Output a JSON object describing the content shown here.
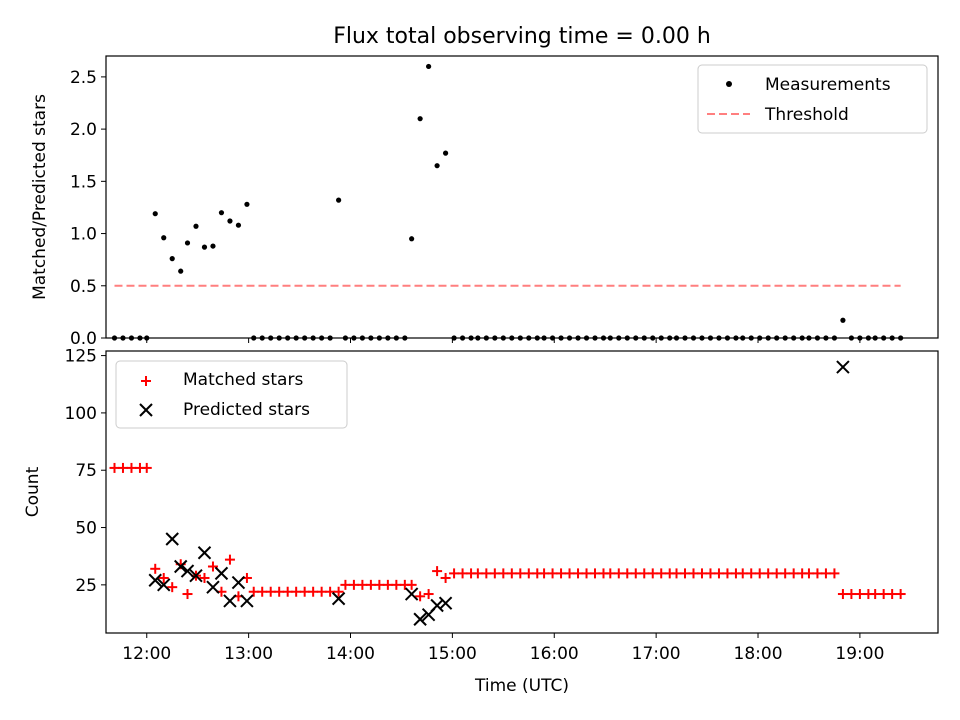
{
  "title": "Flux total observing time = 0.00 h",
  "colors": {
    "measurement": "#000000",
    "threshold": "#ff7f7f",
    "matched": "#ff0000",
    "predicted": "#000000"
  },
  "chart_data": [
    {
      "type": "scatter",
      "ylabel": "Matched/Predicted stars",
      "xlim": [
        "11:36",
        "19:46"
      ],
      "ylim": [
        0,
        2.7
      ],
      "yticks": [
        "0.0",
        "0.5",
        "1.0",
        "1.5",
        "2.0",
        "2.5"
      ],
      "legend": {
        "position": "top-right",
        "entries": [
          "Measurements",
          "Threshold"
        ]
      },
      "threshold": {
        "name": "Threshold",
        "value": 0.5,
        "x": [
          "11:41",
          "19:24"
        ]
      },
      "series": [
        {
          "name": "Measurements",
          "points": [
            [
              "11:41",
              0
            ],
            [
              "11:46",
              0
            ],
            [
              "11:51",
              0
            ],
            [
              "11:56",
              0
            ],
            [
              "12:00",
              0
            ],
            [
              "12:05",
              1.19
            ],
            [
              "12:10",
              0.96
            ],
            [
              "12:15",
              0.76
            ],
            [
              "12:20",
              0.64
            ],
            [
              "12:24",
              0.91
            ],
            [
              "12:29",
              1.07
            ],
            [
              "12:34",
              0.87
            ],
            [
              "12:39",
              0.88
            ],
            [
              "12:44",
              1.2
            ],
            [
              "12:49",
              1.12
            ],
            [
              "12:54",
              1.08
            ],
            [
              "12:59",
              1.28
            ],
            [
              "13:03",
              0
            ],
            [
              "13:08",
              0
            ],
            [
              "13:13",
              0
            ],
            [
              "13:18",
              0
            ],
            [
              "13:23",
              0
            ],
            [
              "13:28",
              0
            ],
            [
              "13:33",
              0
            ],
            [
              "13:38",
              0
            ],
            [
              "13:43",
              0
            ],
            [
              "13:48",
              0
            ],
            [
              "13:53",
              1.32
            ],
            [
              "13:57",
              0
            ],
            [
              "14:02",
              0
            ],
            [
              "14:07",
              0
            ],
            [
              "14:12",
              0
            ],
            [
              "14:17",
              0
            ],
            [
              "14:22",
              0
            ],
            [
              "14:27",
              0
            ],
            [
              "14:32",
              0
            ],
            [
              "14:36",
              0.95
            ],
            [
              "14:41",
              2.1
            ],
            [
              "14:46",
              2.6
            ],
            [
              "14:51",
              1.65
            ],
            [
              "14:56",
              1.77
            ],
            [
              "15:01",
              0
            ],
            [
              "15:06",
              0
            ],
            [
              "15:11",
              0
            ],
            [
              "15:15",
              0
            ],
            [
              "15:20",
              0
            ],
            [
              "15:25",
              0
            ],
            [
              "15:30",
              0
            ],
            [
              "15:35",
              0
            ],
            [
              "15:40",
              0
            ],
            [
              "15:45",
              0
            ],
            [
              "15:50",
              0
            ],
            [
              "15:54",
              0
            ],
            [
              "15:59",
              0
            ],
            [
              "16:04",
              0
            ],
            [
              "16:09",
              0
            ],
            [
              "16:14",
              0
            ],
            [
              "16:19",
              0
            ],
            [
              "16:24",
              0
            ],
            [
              "16:29",
              0
            ],
            [
              "16:33",
              0
            ],
            [
              "16:38",
              0
            ],
            [
              "16:43",
              0
            ],
            [
              "16:48",
              0
            ],
            [
              "16:53",
              0
            ],
            [
              "16:58",
              0
            ],
            [
              "17:03",
              0
            ],
            [
              "17:08",
              0
            ],
            [
              "17:12",
              0
            ],
            [
              "17:17",
              0
            ],
            [
              "17:22",
              0
            ],
            [
              "17:27",
              0
            ],
            [
              "17:32",
              0
            ],
            [
              "17:37",
              0
            ],
            [
              "17:42",
              0
            ],
            [
              "17:47",
              0
            ],
            [
              "17:51",
              0
            ],
            [
              "17:56",
              0
            ],
            [
              "18:01",
              0
            ],
            [
              "18:06",
              0
            ],
            [
              "18:11",
              0
            ],
            [
              "18:16",
              0
            ],
            [
              "18:21",
              0
            ],
            [
              "18:26",
              0
            ],
            [
              "18:30",
              0
            ],
            [
              "18:35",
              0
            ],
            [
              "18:40",
              0
            ],
            [
              "18:45",
              0
            ],
            [
              "18:50",
              0.17
            ],
            [
              "18:55",
              0
            ],
            [
              "19:00",
              0
            ],
            [
              "19:05",
              0
            ],
            [
              "19:09",
              0
            ],
            [
              "19:14",
              0
            ],
            [
              "19:19",
              0
            ],
            [
              "19:24",
              0
            ]
          ]
        }
      ]
    },
    {
      "type": "scatter",
      "xlabel": "Time (UTC)",
      "ylabel": "Count",
      "xlim": [
        "11:36",
        "19:46"
      ],
      "ylim": [
        4,
        127
      ],
      "xticks": [
        "12:00",
        "13:00",
        "14:00",
        "15:00",
        "16:00",
        "17:00",
        "18:00",
        "19:00"
      ],
      "yticks": [
        "25",
        "50",
        "75",
        "100",
        "125"
      ],
      "legend": {
        "position": "top-left",
        "entries": [
          "Matched stars",
          "Predicted stars"
        ]
      },
      "series": [
        {
          "name": "Matched stars",
          "marker": "plus",
          "points": [
            [
              "11:41",
              76
            ],
            [
              "11:46",
              76
            ],
            [
              "11:51",
              76
            ],
            [
              "11:56",
              76
            ],
            [
              "12:00",
              76
            ],
            [
              "12:05",
              32
            ],
            [
              "12:10",
              28
            ],
            [
              "12:15",
              24
            ],
            [
              "12:20",
              34
            ],
            [
              "12:24",
              21
            ],
            [
              "12:29",
              29
            ],
            [
              "12:34",
              28
            ],
            [
              "12:39",
              33
            ],
            [
              "12:44",
              22
            ],
            [
              "12:49",
              36
            ],
            [
              "12:54",
              20
            ],
            [
              "12:59",
              28
            ],
            [
              "13:03",
              22
            ],
            [
              "13:08",
              22
            ],
            [
              "13:13",
              22
            ],
            [
              "13:18",
              22
            ],
            [
              "13:23",
              22
            ],
            [
              "13:28",
              22
            ],
            [
              "13:33",
              22
            ],
            [
              "13:38",
              22
            ],
            [
              "13:43",
              22
            ],
            [
              "13:48",
              22
            ],
            [
              "13:53",
              22
            ],
            [
              "13:57",
              25
            ],
            [
              "14:02",
              25
            ],
            [
              "14:07",
              25
            ],
            [
              "14:12",
              25
            ],
            [
              "14:17",
              25
            ],
            [
              "14:22",
              25
            ],
            [
              "14:27",
              25
            ],
            [
              "14:32",
              25
            ],
            [
              "14:36",
              25
            ],
            [
              "14:41",
              20
            ],
            [
              "14:46",
              21
            ],
            [
              "14:51",
              31
            ],
            [
              "14:56",
              28
            ],
            [
              "15:01",
              30
            ],
            [
              "15:06",
              30
            ],
            [
              "15:11",
              30
            ],
            [
              "15:15",
              30
            ],
            [
              "15:20",
              30
            ],
            [
              "15:25",
              30
            ],
            [
              "15:30",
              30
            ],
            [
              "15:35",
              30
            ],
            [
              "15:40",
              30
            ],
            [
              "15:45",
              30
            ],
            [
              "15:50",
              30
            ],
            [
              "15:54",
              30
            ],
            [
              "15:59",
              30
            ],
            [
              "16:04",
              30
            ],
            [
              "16:09",
              30
            ],
            [
              "16:14",
              30
            ],
            [
              "16:19",
              30
            ],
            [
              "16:24",
              30
            ],
            [
              "16:29",
              30
            ],
            [
              "16:33",
              30
            ],
            [
              "16:38",
              30
            ],
            [
              "16:43",
              30
            ],
            [
              "16:48",
              30
            ],
            [
              "16:53",
              30
            ],
            [
              "16:58",
              30
            ],
            [
              "17:03",
              30
            ],
            [
              "17:08",
              30
            ],
            [
              "17:12",
              30
            ],
            [
              "17:17",
              30
            ],
            [
              "17:22",
              30
            ],
            [
              "17:27",
              30
            ],
            [
              "17:32",
              30
            ],
            [
              "17:37",
              30
            ],
            [
              "17:42",
              30
            ],
            [
              "17:47",
              30
            ],
            [
              "17:51",
              30
            ],
            [
              "17:56",
              30
            ],
            [
              "18:01",
              30
            ],
            [
              "18:06",
              30
            ],
            [
              "18:11",
              30
            ],
            [
              "18:16",
              30
            ],
            [
              "18:21",
              30
            ],
            [
              "18:26",
              30
            ],
            [
              "18:30",
              30
            ],
            [
              "18:35",
              30
            ],
            [
              "18:40",
              30
            ],
            [
              "18:45",
              30
            ],
            [
              "18:50",
              21
            ],
            [
              "18:55",
              21
            ],
            [
              "19:00",
              21
            ],
            [
              "19:05",
              21
            ],
            [
              "19:09",
              21
            ],
            [
              "19:14",
              21
            ],
            [
              "19:19",
              21
            ],
            [
              "19:24",
              21
            ]
          ]
        },
        {
          "name": "Predicted stars",
          "marker": "x",
          "points": [
            [
              "12:05",
              27
            ],
            [
              "12:10",
              25
            ],
            [
              "12:15",
              45
            ],
            [
              "12:20",
              33
            ],
            [
              "12:24",
              31
            ],
            [
              "12:29",
              29
            ],
            [
              "12:34",
              39
            ],
            [
              "12:39",
              24
            ],
            [
              "12:44",
              30
            ],
            [
              "12:49",
              18
            ],
            [
              "12:54",
              26
            ],
            [
              "12:59",
              18
            ],
            [
              "13:53",
              19
            ],
            [
              "14:36",
              21
            ],
            [
              "14:41",
              10
            ],
            [
              "14:46",
              12
            ],
            [
              "14:51",
              16
            ],
            [
              "14:56",
              17
            ],
            [
              "18:50",
              120
            ]
          ]
        }
      ]
    }
  ]
}
